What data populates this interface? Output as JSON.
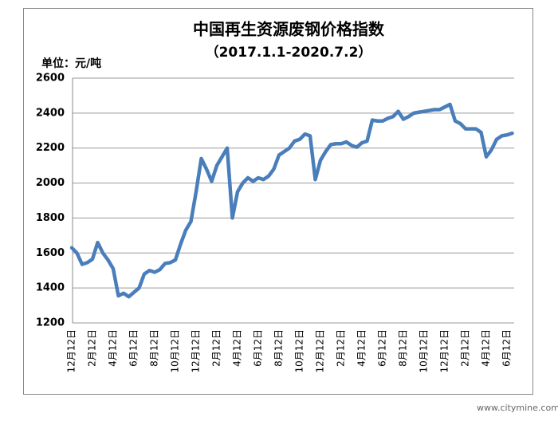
{
  "chart_data": {
    "type": "line",
    "title": "中国再生资源废钢价格指数",
    "subtitle": "（2017.1.1-2020.7.2）",
    "y_unit_label": "单位：元/吨",
    "watermark": "www.citymine.com.cn",
    "categories": [
      "12月12日",
      null,
      null,
      null,
      "2月12日",
      null,
      null,
      null,
      "4月12日",
      null,
      null,
      null,
      "6月12日",
      null,
      null,
      null,
      "8月12日",
      null,
      null,
      null,
      "10月12日",
      null,
      null,
      null,
      "12月12日",
      null,
      null,
      null,
      "2月12日",
      null,
      null,
      null,
      "4月12日",
      null,
      null,
      null,
      "6月12日",
      null,
      null,
      null,
      "8月12日",
      null,
      null,
      null,
      "10月12日",
      null,
      null,
      null,
      "12月12日",
      null,
      null,
      null,
      "2月12日",
      null,
      null,
      null,
      "4月12日",
      null,
      null,
      null,
      "6月12日",
      null,
      null,
      null,
      "8月12日",
      null,
      null,
      null,
      "10月12日",
      null,
      null,
      null,
      "12月12日",
      null,
      null,
      null,
      "2月12日",
      null,
      null,
      null,
      "4月12日",
      null,
      null,
      null,
      "6月12日",
      null
    ],
    "series": [
      {
        "name": "废钢价格指数",
        "color": "#4a7ebb",
        "values": [
          1630,
          1600,
          1535,
          1545,
          1565,
          1660,
          1600,
          1560,
          1510,
          1355,
          1370,
          1350,
          1375,
          1400,
          1480,
          1500,
          1490,
          1505,
          1540,
          1545,
          1560,
          1650,
          1730,
          1780,
          1950,
          2140,
          2080,
          2010,
          2100,
          2150,
          2200,
          1800,
          1950,
          2000,
          2030,
          2010,
          2030,
          2020,
          2040,
          2080,
          2160,
          2180,
          2200,
          2240,
          2250,
          2280,
          2270,
          2020,
          2130,
          2180,
          2220,
          2225,
          2225,
          2235,
          2215,
          2205,
          2230,
          2240,
          2360,
          2355,
          2355,
          2370,
          2380,
          2410,
          2365,
          2380,
          2400,
          2405,
          2410,
          2415,
          2420,
          2420,
          2435,
          2450,
          2355,
          2340,
          2310,
          2310,
          2310,
          2290,
          2150,
          2190,
          2250,
          2270,
          2275,
          2285
        ]
      }
    ],
    "ylim": [
      1200,
      2600
    ],
    "yticks": [
      1200,
      1400,
      1600,
      1800,
      2000,
      2200,
      2400,
      2600
    ],
    "grid": true
  }
}
